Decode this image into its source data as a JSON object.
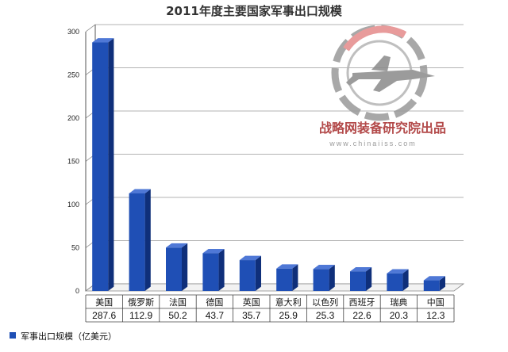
{
  "chart_data": {
    "type": "bar",
    "title": "2011年度主要国家军事出口规模",
    "categories": [
      "美国",
      "俄罗斯",
      "法国",
      "德国",
      "英国",
      "意大利",
      "以色列",
      "西班牙",
      "瑞典",
      "中国"
    ],
    "series": [
      {
        "name": "军事出口规模（亿美元）",
        "values": [
          287.6,
          112.9,
          50.2,
          43.7,
          35.7,
          25.9,
          25.3,
          22.6,
          20.3,
          12.3
        ],
        "labels": [
          "287.6",
          "112.9",
          "50.2",
          "43.7",
          "35.7",
          "25.9",
          "25.3",
          "22.6",
          "20.3",
          "12.3"
        ]
      }
    ],
    "yticks": [
      0,
      50,
      100,
      150,
      200,
      250,
      300
    ],
    "ylim": [
      0,
      300
    ],
    "grid": true,
    "legend_position": "bottom-left",
    "bar_color": "#1f4fb5"
  },
  "watermark": {
    "text": "战略网装备研究院出品",
    "url": "www.chinaiiss.com"
  }
}
